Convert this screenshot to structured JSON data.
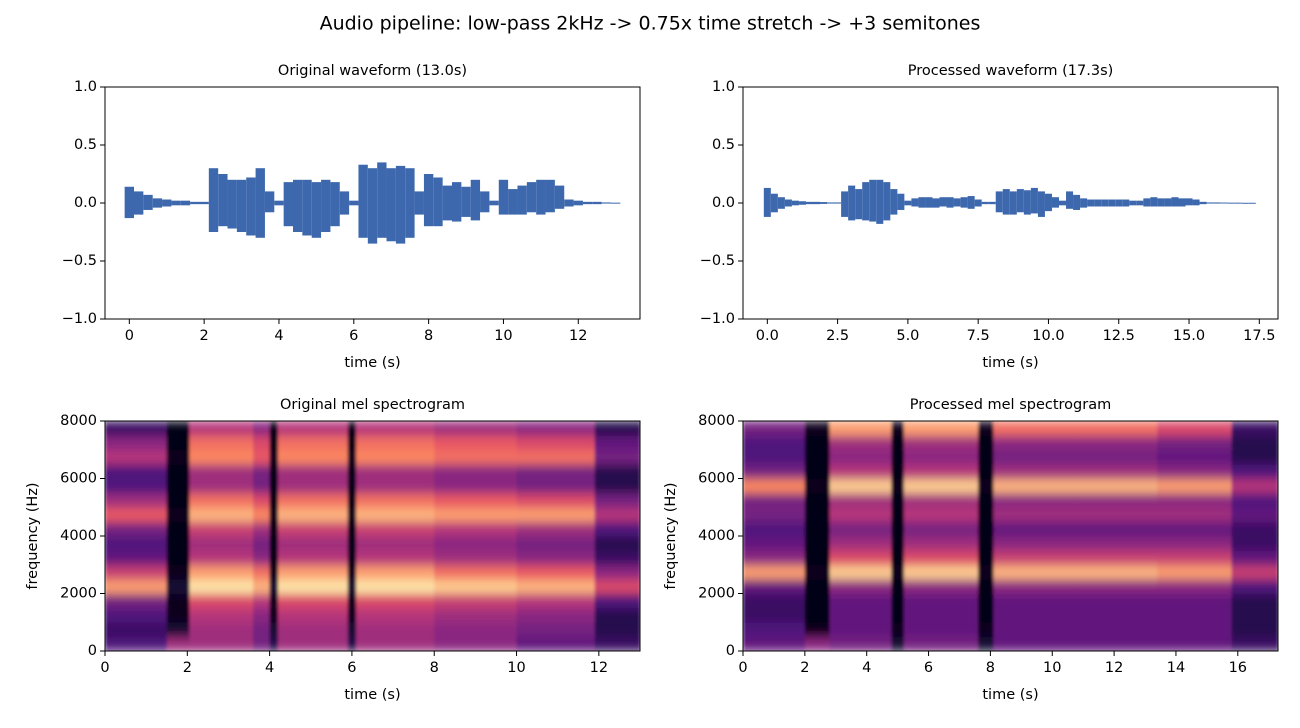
{
  "title": "Audio pipeline: low-pass 2kHz -> 0.75x time stretch -> +3 semitones",
  "chart_data": [
    {
      "type": "waveform",
      "title": "Original waveform (13.0s)",
      "x_label": "time (s)",
      "color": "#3d68ad",
      "xlim": [
        -0.65,
        13.65
      ],
      "xticks": [
        0,
        2,
        4,
        6,
        8,
        10,
        12
      ],
      "ylim": [
        -1,
        1
      ],
      "yticks": [
        {
          "value": -1,
          "label": "−1.0"
        },
        {
          "value": -0.5,
          "label": "−0.5"
        },
        {
          "value": 0,
          "label": "0.0"
        },
        {
          "value": 0.5,
          "label": "0.5"
        },
        {
          "value": 1,
          "label": "1.0"
        }
      ],
      "x": [
        0,
        0.25,
        0.5,
        0.75,
        1,
        1.25,
        1.5,
        1.75,
        2,
        2.25,
        2.5,
        2.75,
        3,
        3.25,
        3.5,
        3.75,
        4,
        4.25,
        4.5,
        4.75,
        5,
        5.25,
        5.5,
        5.75,
        6,
        6.25,
        6.5,
        6.75,
        7,
        7.25,
        7.5,
        7.75,
        8,
        8.25,
        8.5,
        8.75,
        9,
        9.25,
        9.5,
        9.75,
        10,
        10.25,
        10.5,
        10.75,
        11,
        11.25,
        11.5,
        11.75,
        12,
        12.25,
        12.5,
        12.75,
        13
      ],
      "upper": [
        0.14,
        0.1,
        0.07,
        0.04,
        0.03,
        0.02,
        0.02,
        0.01,
        0.01,
        0.3,
        0.25,
        0.2,
        0.2,
        0.22,
        0.3,
        0.1,
        0.02,
        0.18,
        0.2,
        0.2,
        0.18,
        0.2,
        0.18,
        0.1,
        0.02,
        0.33,
        0.3,
        0.35,
        0.3,
        0.32,
        0.3,
        0.1,
        0.25,
        0.22,
        0.15,
        0.18,
        0.14,
        0.2,
        0.1,
        0.02,
        0.2,
        0.12,
        0.15,
        0.18,
        0.2,
        0.2,
        0.15,
        0.03,
        0.02,
        0.01,
        0.01,
        0.005,
        0.003
      ],
      "lower": [
        -0.13,
        -0.1,
        -0.06,
        -0.04,
        -0.03,
        -0.02,
        -0.02,
        -0.01,
        -0.01,
        -0.25,
        -0.2,
        -0.22,
        -0.25,
        -0.28,
        -0.3,
        -0.08,
        -0.02,
        -0.2,
        -0.25,
        -0.28,
        -0.3,
        -0.25,
        -0.2,
        -0.1,
        -0.02,
        -0.3,
        -0.35,
        -0.3,
        -0.33,
        -0.35,
        -0.3,
        -0.1,
        -0.2,
        -0.2,
        -0.15,
        -0.16,
        -0.12,
        -0.15,
        -0.08,
        -0.02,
        -0.1,
        -0.1,
        -0.1,
        -0.08,
        -0.1,
        -0.08,
        -0.05,
        -0.03,
        -0.02,
        -0.01,
        -0.01,
        -0.005,
        -0.003
      ]
    },
    {
      "type": "waveform",
      "title": "Processed waveform (17.3s)",
      "x_label": "time (s)",
      "color": "#3d68ad",
      "xlim": [
        -0.865,
        18.165
      ],
      "xticks": [
        {
          "value": 0,
          "label": "0.0"
        },
        2.5,
        {
          "value": 5,
          "label": "5.0"
        },
        7.5,
        {
          "value": 10,
          "label": "10.0"
        },
        12.5,
        {
          "value": 15,
          "label": "15.0"
        },
        17.5
      ],
      "ylim": [
        -1,
        1
      ],
      "yticks": [
        {
          "value": -1,
          "label": "−1.0"
        },
        {
          "value": -0.5,
          "label": "−0.5"
        },
        {
          "value": 0,
          "label": "0.0"
        },
        {
          "value": 0.5,
          "label": "0.5"
        },
        {
          "value": 1,
          "label": "1.0"
        }
      ],
      "x": [
        0,
        0.25,
        0.5,
        0.75,
        1,
        1.25,
        1.5,
        1.75,
        2,
        2.25,
        2.5,
        2.75,
        3,
        3.25,
        3.5,
        3.75,
        4,
        4.25,
        4.5,
        4.75,
        5,
        5.25,
        5.5,
        5.75,
        6,
        6.25,
        6.5,
        6.75,
        7,
        7.25,
        7.5,
        7.75,
        8,
        8.25,
        8.5,
        8.75,
        9,
        9.25,
        9.5,
        9.75,
        10,
        10.25,
        10.5,
        10.75,
        11,
        11.25,
        11.5,
        11.75,
        12,
        12.25,
        12.5,
        12.75,
        13,
        13.25,
        13.5,
        13.75,
        14,
        14.25,
        14.5,
        14.75,
        15,
        15.25,
        15.5,
        15.75,
        16,
        16.25,
        16.5,
        16.75,
        17,
        17.25
      ],
      "upper": [
        0.13,
        0.08,
        0.05,
        0.03,
        0.02,
        0.015,
        0.01,
        0.01,
        0.008,
        0.005,
        0.005,
        0.1,
        0.15,
        0.12,
        0.18,
        0.2,
        0.2,
        0.18,
        0.12,
        0.08,
        0.02,
        0.04,
        0.05,
        0.05,
        0.04,
        0.05,
        0.05,
        0.04,
        0.05,
        0.06,
        0.03,
        0.01,
        0.01,
        0.1,
        0.12,
        0.1,
        0.12,
        0.11,
        0.13,
        0.1,
        0.08,
        0.05,
        0.02,
        0.1,
        0.07,
        0.04,
        0.03,
        0.03,
        0.03,
        0.03,
        0.03,
        0.03,
        0.02,
        0.02,
        0.04,
        0.05,
        0.04,
        0.04,
        0.05,
        0.04,
        0.04,
        0.03,
        0.01,
        0.005,
        0.005,
        0.004,
        0.003,
        0.003,
        0.002,
        0.002
      ],
      "lower": [
        -0.12,
        -0.08,
        -0.05,
        -0.03,
        -0.02,
        -0.015,
        -0.01,
        -0.01,
        -0.008,
        -0.005,
        -0.005,
        -0.12,
        -0.15,
        -0.14,
        -0.15,
        -0.16,
        -0.18,
        -0.15,
        -0.1,
        -0.06,
        -0.02,
        -0.03,
        -0.04,
        -0.04,
        -0.04,
        -0.03,
        -0.04,
        -0.03,
        -0.04,
        -0.05,
        -0.03,
        -0.01,
        -0.01,
        -0.08,
        -0.1,
        -0.1,
        -0.08,
        -0.1,
        -0.09,
        -0.12,
        -0.07,
        -0.04,
        -0.02,
        -0.05,
        -0.06,
        -0.04,
        -0.03,
        -0.03,
        -0.03,
        -0.03,
        -0.03,
        -0.03,
        -0.02,
        -0.02,
        -0.03,
        -0.03,
        -0.03,
        -0.03,
        -0.03,
        -0.03,
        -0.02,
        -0.02,
        -0.01,
        -0.005,
        -0.005,
        -0.004,
        -0.003,
        -0.003,
        -0.002,
        -0.002
      ]
    },
    {
      "type": "heatmap",
      "title": "Original mel spectrogram",
      "x_label": "time (s)",
      "y_label": "frequency (Hz)",
      "colormap": "magma",
      "xlim": [
        0,
        13
      ],
      "xticks": [
        0,
        2,
        4,
        6,
        8,
        10,
        12
      ],
      "ylim": [
        0,
        8000
      ],
      "yticks": [
        0,
        2000,
        4000,
        6000,
        8000
      ],
      "x_edges": [
        0,
        1.5,
        2.05,
        3.6,
        4.0,
        4.2,
        5.9,
        6.1,
        8.0,
        10.0,
        11.9,
        13
      ],
      "y_edges": [
        0,
        500,
        1000,
        1500,
        2000,
        2500,
        3000,
        3500,
        4000,
        4500,
        5000,
        5500,
        6000,
        6500,
        7000,
        7500,
        8000
      ],
      "values": [
        [
          0.25,
          0.2,
          0.25,
          0.35,
          0.8,
          0.55,
          0.3,
          0.25,
          0.35,
          0.65,
          0.45,
          0.25,
          0.25,
          0.5,
          0.4,
          0.2
        ],
        [
          0.45,
          0.1,
          0.05,
          0.05,
          0.1,
          0.05,
          0.03,
          0.03,
          0.03,
          0.05,
          0.03,
          0.03,
          0.03,
          0.05,
          0.03,
          0.03
        ],
        [
          0.45,
          0.45,
          0.5,
          0.6,
          0.95,
          0.8,
          0.5,
          0.45,
          0.55,
          0.85,
          0.7,
          0.45,
          0.45,
          0.75,
          0.7,
          0.5
        ],
        [
          0.35,
          0.35,
          0.4,
          0.5,
          0.85,
          0.7,
          0.4,
          0.35,
          0.45,
          0.75,
          0.6,
          0.35,
          0.35,
          0.65,
          0.6,
          0.4
        ],
        [
          0.15,
          0.1,
          0.05,
          0.05,
          0.1,
          0.05,
          0.03,
          0.03,
          0.03,
          0.05,
          0.03,
          0.03,
          0.03,
          0.05,
          0.03,
          0.03
        ],
        [
          0.45,
          0.45,
          0.5,
          0.6,
          0.95,
          0.8,
          0.5,
          0.45,
          0.55,
          0.85,
          0.7,
          0.45,
          0.45,
          0.75,
          0.7,
          0.5
        ],
        [
          0.15,
          0.1,
          0.05,
          0.05,
          0.1,
          0.05,
          0.03,
          0.03,
          0.03,
          0.05,
          0.03,
          0.03,
          0.03,
          0.05,
          0.03,
          0.03
        ],
        [
          0.45,
          0.45,
          0.5,
          0.6,
          0.95,
          0.8,
          0.5,
          0.45,
          0.55,
          0.85,
          0.7,
          0.45,
          0.45,
          0.75,
          0.7,
          0.5
        ],
        [
          0.4,
          0.4,
          0.45,
          0.55,
          0.9,
          0.7,
          0.45,
          0.4,
          0.5,
          0.8,
          0.65,
          0.4,
          0.4,
          0.7,
          0.65,
          0.45
        ],
        [
          0.3,
          0.35,
          0.4,
          0.5,
          0.85,
          0.65,
          0.4,
          0.35,
          0.45,
          0.8,
          0.6,
          0.35,
          0.35,
          0.7,
          0.6,
          0.4
        ],
        [
          0.2,
          0.15,
          0.15,
          0.25,
          0.6,
          0.4,
          0.2,
          0.15,
          0.25,
          0.5,
          0.35,
          0.15,
          0.15,
          0.35,
          0.3,
          0.15
        ]
      ]
    },
    {
      "type": "heatmap",
      "title": "Processed mel spectrogram",
      "x_label": "time (s)",
      "y_label": "frequency (Hz)",
      "colormap": "magma",
      "xlim": [
        0,
        17.3
      ],
      "xticks": [
        0,
        2,
        4,
        6,
        8,
        10,
        12,
        14,
        16
      ],
      "ylim": [
        0,
        8000
      ],
      "yticks": [
        0,
        2000,
        4000,
        6000,
        8000
      ],
      "x_edges": [
        0,
        2.0,
        2.8,
        4.8,
        5.2,
        7.6,
        8.1,
        10.7,
        13.4,
        15.8,
        17.3
      ],
      "y_edges": [
        0,
        500,
        1000,
        1500,
        2000,
        2500,
        3000,
        3500,
        4000,
        4500,
        5000,
        5500,
        6000,
        6500,
        7000,
        7500,
        8000
      ],
      "values": [
        [
          0.3,
          0.25,
          0.2,
          0.2,
          0.3,
          0.8,
          0.4,
          0.3,
          0.25,
          0.35,
          0.35,
          0.75,
          0.35,
          0.25,
          0.25,
          0.35
        ],
        [
          0.4,
          0.05,
          0.03,
          0.03,
          0.03,
          0.05,
          0.03,
          0.03,
          0.03,
          0.03,
          0.03,
          0.05,
          0.03,
          0.03,
          0.03,
          0.05
        ],
        [
          0.35,
          0.3,
          0.3,
          0.3,
          0.4,
          0.9,
          0.6,
          0.45,
          0.35,
          0.5,
          0.45,
          0.9,
          0.5,
          0.4,
          0.45,
          0.8
        ],
        [
          0.1,
          0.05,
          0.03,
          0.03,
          0.03,
          0.05,
          0.03,
          0.03,
          0.03,
          0.03,
          0.03,
          0.05,
          0.03,
          0.03,
          0.03,
          0.05
        ],
        [
          0.35,
          0.3,
          0.3,
          0.3,
          0.4,
          0.9,
          0.6,
          0.45,
          0.35,
          0.5,
          0.45,
          0.9,
          0.5,
          0.4,
          0.45,
          0.8
        ],
        [
          0.1,
          0.05,
          0.03,
          0.03,
          0.03,
          0.05,
          0.03,
          0.03,
          0.03,
          0.03,
          0.03,
          0.05,
          0.03,
          0.03,
          0.03,
          0.05
        ],
        [
          0.3,
          0.3,
          0.3,
          0.3,
          0.4,
          0.85,
          0.55,
          0.4,
          0.3,
          0.45,
          0.4,
          0.85,
          0.45,
          0.35,
          0.4,
          0.7
        ],
        [
          0.3,
          0.3,
          0.3,
          0.3,
          0.4,
          0.85,
          0.55,
          0.4,
          0.3,
          0.45,
          0.4,
          0.85,
          0.45,
          0.35,
          0.4,
          0.7
        ],
        [
          0.3,
          0.3,
          0.3,
          0.3,
          0.4,
          0.8,
          0.55,
          0.4,
          0.3,
          0.45,
          0.4,
          0.8,
          0.4,
          0.3,
          0.35,
          0.6
        ],
        [
          0.2,
          0.15,
          0.15,
          0.15,
          0.25,
          0.55,
          0.3,
          0.2,
          0.2,
          0.3,
          0.25,
          0.5,
          0.25,
          0.15,
          0.15,
          0.2
        ]
      ]
    }
  ]
}
